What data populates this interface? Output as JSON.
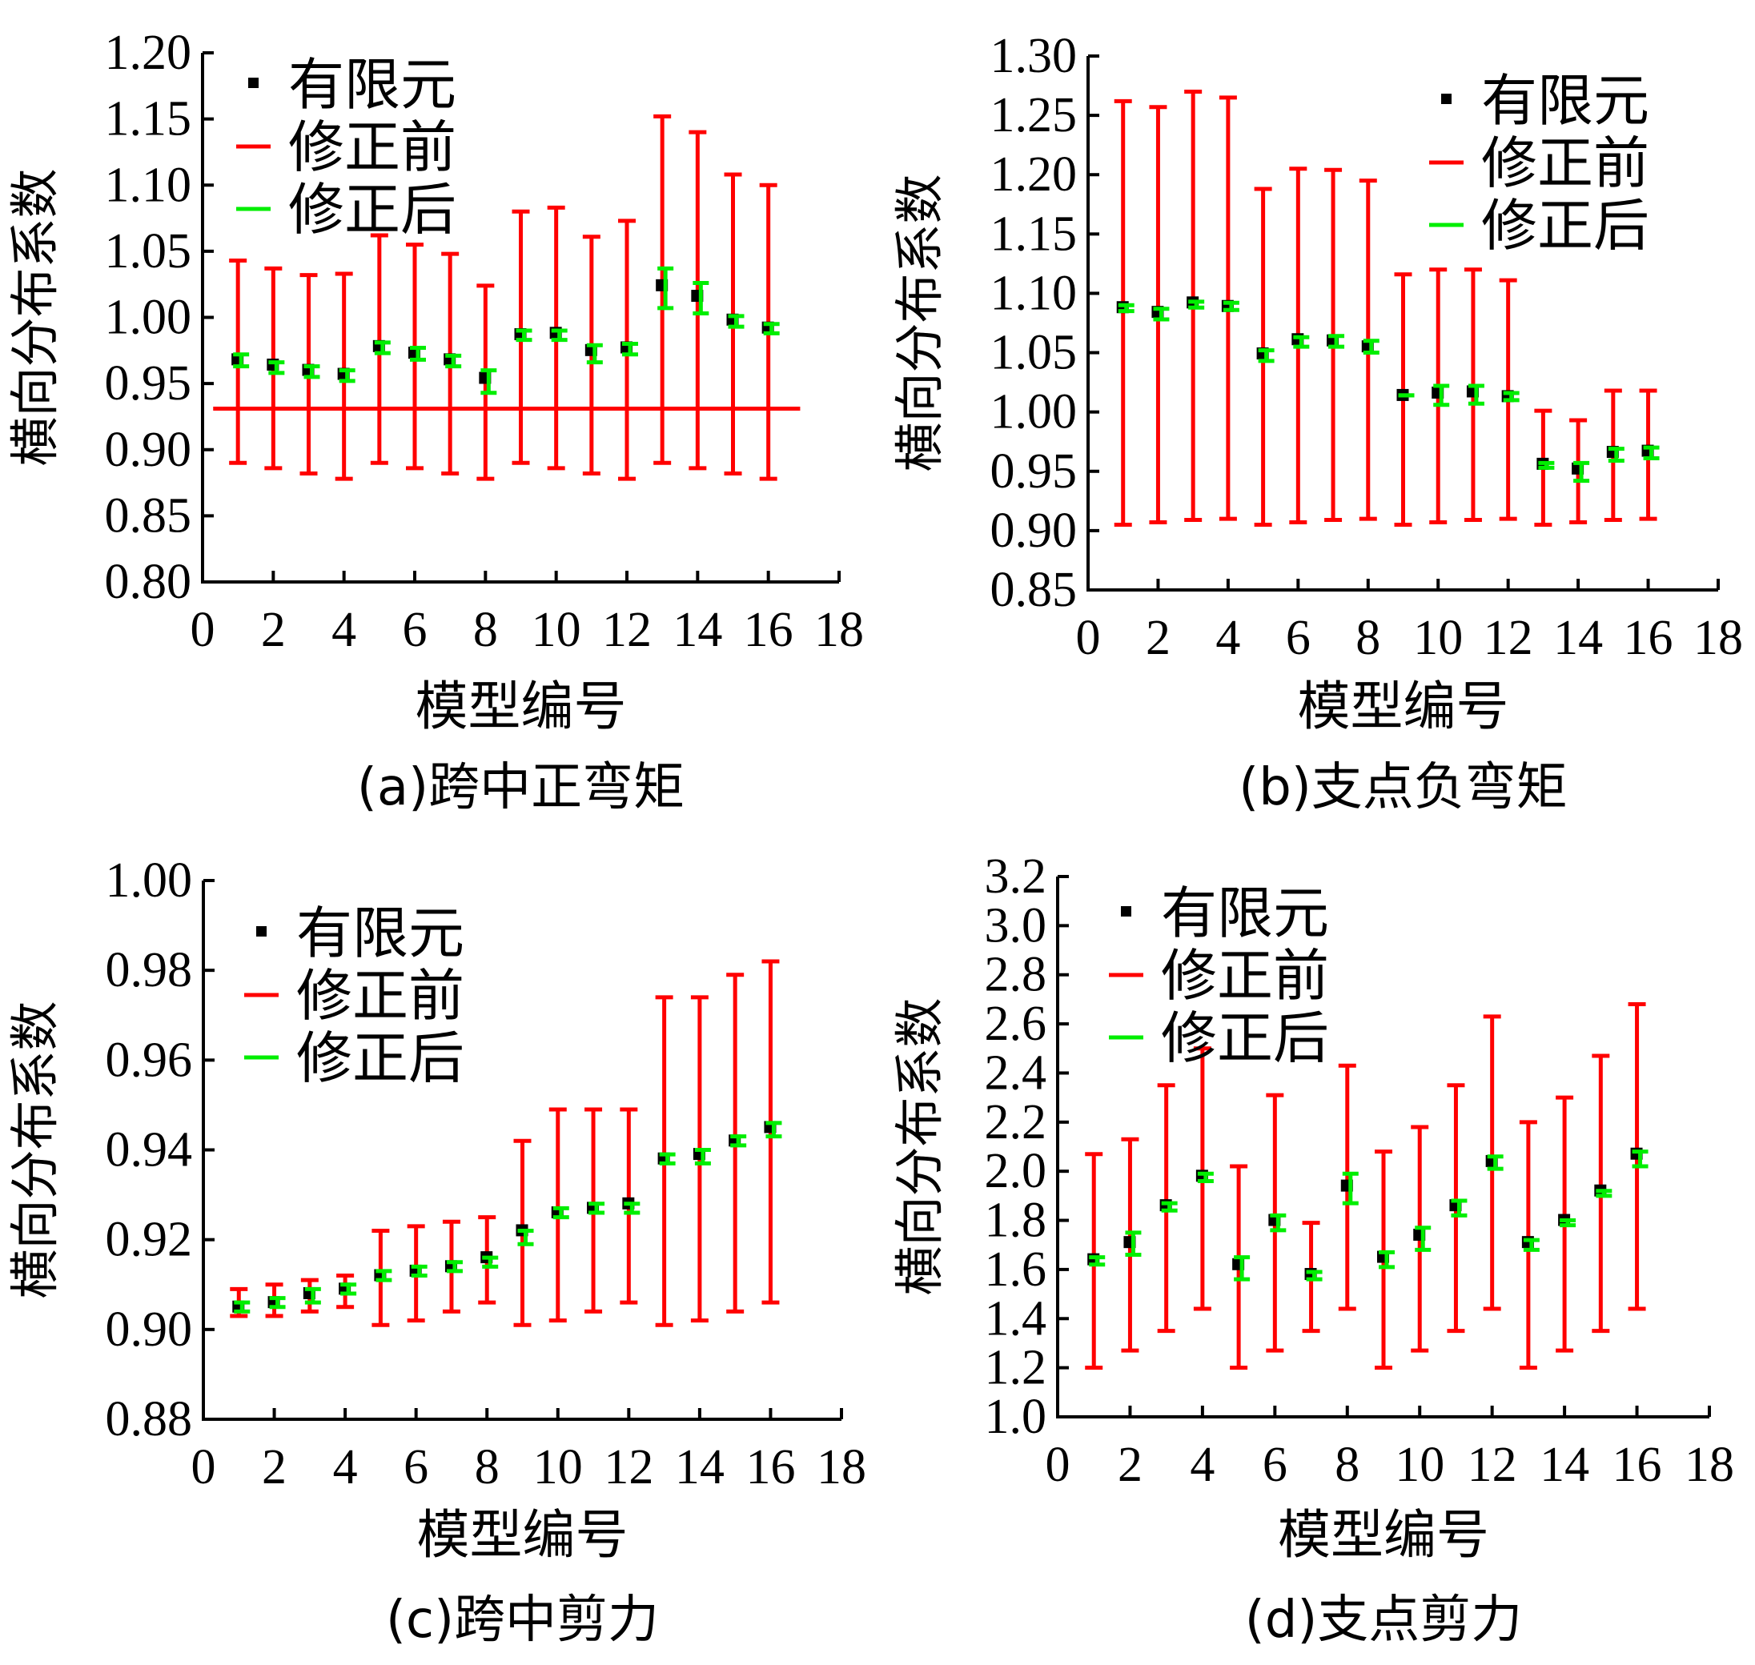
{
  "legend": {
    "fe": "有限元",
    "before": "修正前",
    "after": "修正后"
  },
  "colors": {
    "fe": "#000000",
    "before": "#ff0000",
    "after": "#00ee00",
    "axis": "#000000"
  },
  "chart_data": [
    {
      "type": "scatter-errorbar",
      "caption": "(a)跨中正弯矩",
      "xlabel": "模型编号",
      "ylabel": "横向分布系数",
      "xlim": [
        0,
        18
      ],
      "xticks": [
        0,
        2,
        4,
        6,
        8,
        10,
        12,
        14,
        16,
        18
      ],
      "ylim": [
        0.8,
        1.2
      ],
      "yticks": [
        "0.80",
        "0.85",
        "0.90",
        "0.95",
        "1.00",
        "1.05",
        "1.10",
        "1.15",
        "1.20"
      ],
      "legend_position": "top-left",
      "x": [
        1,
        2,
        3,
        4,
        5,
        6,
        7,
        8,
        9,
        10,
        11,
        12,
        13,
        14,
        15,
        16
      ],
      "fe": [
        0.968,
        0.964,
        0.96,
        0.957,
        0.978,
        0.973,
        0.968,
        0.954,
        0.987,
        0.988,
        0.975,
        0.977,
        1.024,
        1.016,
        0.998,
        0.992
      ],
      "before": [
        [
          0.89,
          1.043
        ],
        [
          0.886,
          1.037
        ],
        [
          0.882,
          1.032
        ],
        [
          0.878,
          1.033
        ],
        [
          0.89,
          1.062
        ],
        [
          0.886,
          1.055
        ],
        [
          0.882,
          1.048
        ],
        [
          0.878,
          1.024
        ],
        [
          0.89,
          1.08
        ],
        [
          0.886,
          1.083
        ],
        [
          0.882,
          1.061
        ],
        [
          0.878,
          1.073
        ],
        [
          0.89,
          1.152
        ],
        [
          0.886,
          1.14
        ],
        [
          0.882,
          1.108
        ],
        [
          0.878,
          1.1
        ]
      ],
      "after": [
        [
          0.963,
          0.972
        ],
        [
          0.958,
          0.966
        ],
        [
          0.955,
          0.963
        ],
        [
          0.952,
          0.96
        ],
        [
          0.973,
          0.981
        ],
        [
          0.968,
          0.977
        ],
        [
          0.963,
          0.971
        ],
        [
          0.943,
          0.96
        ],
        [
          0.983,
          0.99
        ],
        [
          0.983,
          0.99
        ],
        [
          0.966,
          0.979
        ],
        [
          0.972,
          0.98
        ],
        [
          1.007,
          1.037
        ],
        [
          1.003,
          1.026
        ],
        [
          0.993,
          1.001
        ],
        [
          0.988,
          0.995
        ]
      ],
      "hline": {
        "y": 0.931,
        "x": [
          0.3,
          16.9
        ]
      }
    },
    {
      "type": "scatter-errorbar",
      "caption": "(b)支点负弯矩",
      "xlabel": "模型编号",
      "ylabel": "横向分布系数",
      "xlim": [
        0,
        18
      ],
      "xticks": [
        0,
        2,
        4,
        6,
        8,
        10,
        12,
        14,
        16,
        18
      ],
      "ylim": [
        0.85,
        1.3
      ],
      "yticks": [
        "0.85",
        "0.90",
        "0.95",
        "1.00",
        "1.05",
        "1.10",
        "1.15",
        "1.20",
        "1.25",
        "1.30"
      ],
      "legend_position": "top-right",
      "x": [
        1,
        2,
        3,
        4,
        5,
        6,
        7,
        8,
        9,
        10,
        11,
        12,
        13,
        14,
        15,
        16
      ],
      "fe": [
        1.088,
        1.084,
        1.092,
        1.089,
        1.049,
        1.061,
        1.06,
        1.055,
        1.014,
        1.016,
        1.017,
        1.013,
        0.956,
        0.952,
        0.966,
        0.967
      ],
      "before": [
        [
          0.905,
          1.262
        ],
        [
          0.907,
          1.257
        ],
        [
          0.909,
          1.27
        ],
        [
          0.91,
          1.265
        ],
        [
          0.905,
          1.188
        ],
        [
          0.907,
          1.205
        ],
        [
          0.909,
          1.204
        ],
        [
          0.91,
          1.195
        ],
        [
          0.905,
          1.116
        ],
        [
          0.907,
          1.12
        ],
        [
          0.909,
          1.12
        ],
        [
          0.91,
          1.111
        ],
        [
          0.905,
          1.001
        ],
        [
          0.907,
          0.993
        ],
        [
          0.909,
          1.018
        ],
        [
          0.91,
          1.018
        ]
      ],
      "after": [
        [
          1.085,
          1.09
        ],
        [
          1.078,
          1.087
        ],
        [
          1.088,
          1.093
        ],
        [
          1.086,
          1.092
        ],
        [
          1.043,
          1.052
        ],
        [
          1.055,
          1.063
        ],
        [
          1.055,
          1.064
        ],
        [
          1.05,
          1.06
        ],
        [
          1.014,
          1.014
        ],
        [
          1.006,
          1.022
        ],
        [
          1.007,
          1.022
        ],
        [
          1.01,
          1.016
        ],
        [
          0.953,
          0.957
        ],
        [
          0.942,
          0.957
        ],
        [
          0.959,
          0.969
        ],
        [
          0.961,
          0.97
        ]
      ]
    },
    {
      "type": "scatter-errorbar",
      "caption": "(c)跨中剪力",
      "xlabel": "模型编号",
      "ylabel": "横向分布系数",
      "xlim": [
        0,
        18
      ],
      "xticks": [
        0,
        2,
        4,
        6,
        8,
        10,
        12,
        14,
        16,
        18
      ],
      "ylim": [
        0.88,
        1.0
      ],
      "yticks": [
        "0.88",
        "0.90",
        "0.92",
        "0.94",
        "0.96",
        "0.98",
        "1.00"
      ],
      "legend_position": "top-left",
      "x": [
        1,
        2,
        3,
        4,
        5,
        6,
        7,
        8,
        9,
        10,
        11,
        12,
        13,
        14,
        15,
        16
      ],
      "fe": [
        0.905,
        0.906,
        0.908,
        0.909,
        0.912,
        0.913,
        0.914,
        0.916,
        0.922,
        0.926,
        0.927,
        0.928,
        0.938,
        0.939,
        0.942,
        0.945
      ],
      "before": [
        [
          0.903,
          0.909
        ],
        [
          0.903,
          0.91
        ],
        [
          0.904,
          0.911
        ],
        [
          0.905,
          0.912
        ],
        [
          0.901,
          0.922
        ],
        [
          0.902,
          0.923
        ],
        [
          0.904,
          0.924
        ],
        [
          0.906,
          0.925
        ],
        [
          0.901,
          0.942
        ],
        [
          0.902,
          0.949
        ],
        [
          0.904,
          0.949
        ],
        [
          0.906,
          0.949
        ],
        [
          0.901,
          0.974
        ],
        [
          0.902,
          0.974
        ],
        [
          0.904,
          0.979
        ],
        [
          0.906,
          0.982
        ]
      ],
      "after": [
        [
          0.904,
          0.906
        ],
        [
          0.905,
          0.907
        ],
        [
          0.906,
          0.909
        ],
        [
          0.908,
          0.91
        ],
        [
          0.911,
          0.913
        ],
        [
          0.912,
          0.914
        ],
        [
          0.913,
          0.915
        ],
        [
          0.914,
          0.916
        ],
        [
          0.919,
          0.922
        ],
        [
          0.925,
          0.927
        ],
        [
          0.926,
          0.928
        ],
        [
          0.926,
          0.928
        ],
        [
          0.937,
          0.939
        ],
        [
          0.937,
          0.94
        ],
        [
          0.941,
          0.943
        ],
        [
          0.943,
          0.946
        ]
      ]
    },
    {
      "type": "scatter-errorbar",
      "caption": "(d)支点剪力",
      "xlabel": "模型编号",
      "ylabel": "横向分布系数",
      "xlim": [
        0,
        18
      ],
      "xticks": [
        0,
        2,
        4,
        6,
        8,
        10,
        12,
        14,
        16,
        18
      ],
      "ylim": [
        1.0,
        3.2
      ],
      "yticks": [
        "1.0",
        "1.2",
        "1.4",
        "1.6",
        "1.8",
        "2.0",
        "2.2",
        "2.4",
        "2.6",
        "2.8",
        "3.0",
        "3.2"
      ],
      "legend_position": "top-left",
      "x": [
        1,
        2,
        3,
        4,
        5,
        6,
        7,
        8,
        9,
        10,
        11,
        12,
        13,
        14,
        15,
        16
      ],
      "fe": [
        1.64,
        1.71,
        1.86,
        1.98,
        1.62,
        1.8,
        1.58,
        1.94,
        1.65,
        1.74,
        1.86,
        2.04,
        1.71,
        1.8,
        1.92,
        2.07
      ],
      "before": [
        [
          1.2,
          2.07
        ],
        [
          1.27,
          2.13
        ],
        [
          1.35,
          2.35
        ],
        [
          1.44,
          2.5
        ],
        [
          1.2,
          2.02
        ],
        [
          1.27,
          2.31
        ],
        [
          1.35,
          1.79
        ],
        [
          1.44,
          2.43
        ],
        [
          1.2,
          2.08
        ],
        [
          1.27,
          2.18
        ],
        [
          1.35,
          2.35
        ],
        [
          1.44,
          2.63
        ],
        [
          1.2,
          2.2
        ],
        [
          1.27,
          2.3
        ],
        [
          1.35,
          2.47
        ],
        [
          1.44,
          2.68
        ]
      ],
      "after": [
        [
          1.62,
          1.65
        ],
        [
          1.66,
          1.75
        ],
        [
          1.84,
          1.87
        ],
        [
          1.96,
          1.99
        ],
        [
          1.56,
          1.65
        ],
        [
          1.76,
          1.82
        ],
        [
          1.56,
          1.59
        ],
        [
          1.87,
          1.99
        ],
        [
          1.61,
          1.67
        ],
        [
          1.68,
          1.77
        ],
        [
          1.82,
          1.88
        ],
        [
          2.01,
          2.06
        ],
        [
          1.68,
          1.72
        ],
        [
          1.78,
          1.8
        ],
        [
          1.9,
          1.92
        ],
        [
          2.02,
          2.08
        ]
      ]
    }
  ]
}
